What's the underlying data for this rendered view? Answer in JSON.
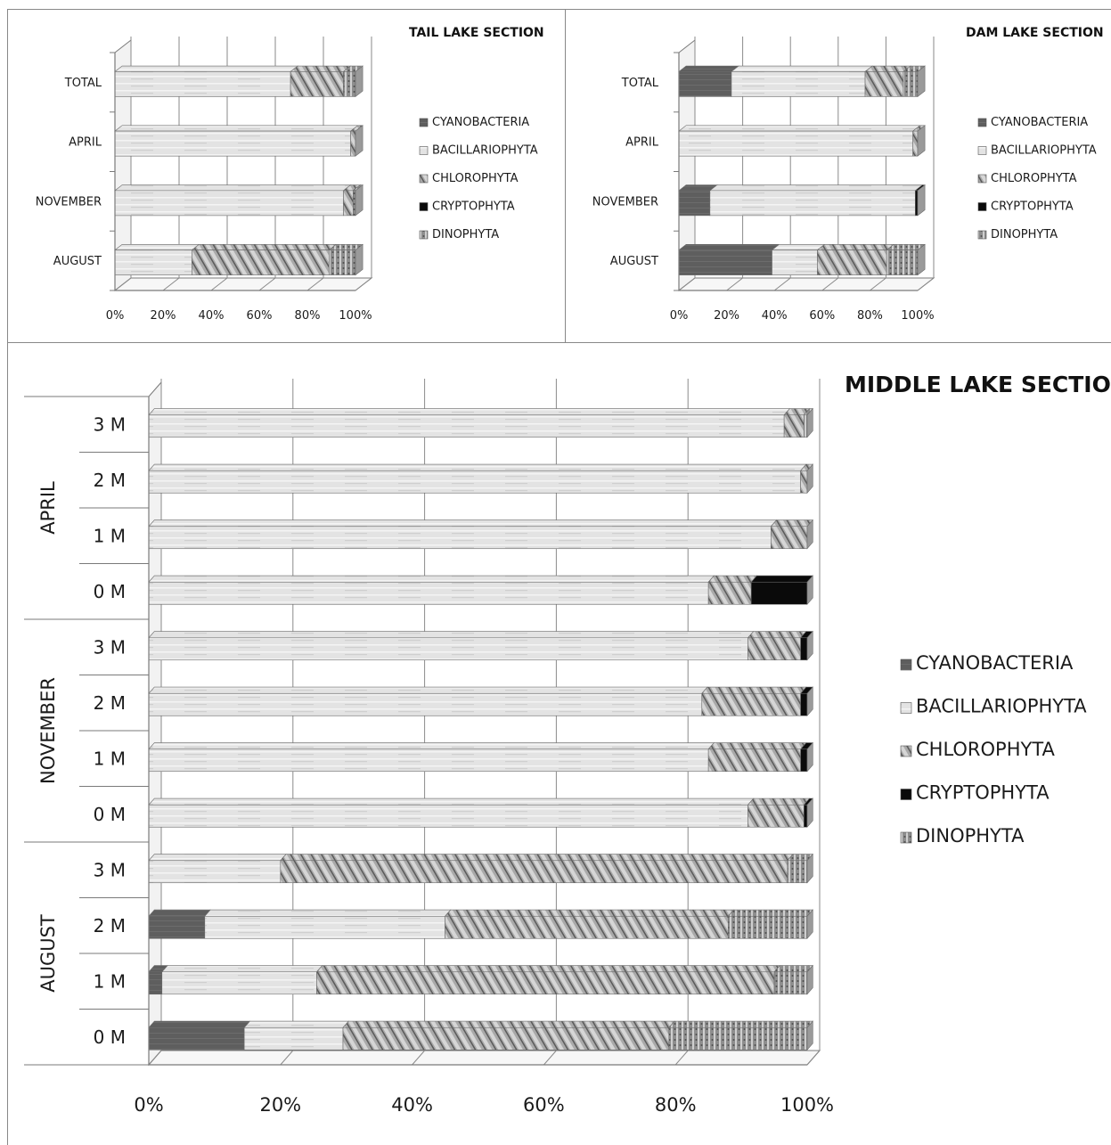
{
  "colors": {
    "CYANOBACTERIA": "#5e5e5e",
    "BACILLARIOPHYTA": "#e3e3e3",
    "CHLOROPHYTA": "#a9a9a9",
    "CRYPTOPHYTA": "#0a0a0a",
    "DINOPHYTA": "#8e8e8e"
  },
  "chart_data": [
    {
      "type": "bar",
      "stacked": "percent",
      "orientation": "horizontal",
      "title": "TAIL LAKE SECTION",
      "categories": [
        "TOTAL",
        "APRIL",
        "NOVEMBER",
        "AUGUST"
      ],
      "series": [
        {
          "name": "CYANOBACTERIA",
          "values": [
            0,
            0,
            0,
            0
          ]
        },
        {
          "name": "BACILLARIOPHYTA",
          "values": [
            73,
            98,
            95,
            32
          ]
        },
        {
          "name": "CHLOROPHYTA",
          "values": [
            22,
            2,
            4,
            57
          ]
        },
        {
          "name": "CRYPTOPHYTA",
          "values": [
            0,
            0,
            0,
            0
          ]
        },
        {
          "name": "DINOPHYTA",
          "values": [
            5,
            0,
            1,
            11
          ]
        }
      ],
      "x_ticks": [
        "0%",
        "20%",
        "40%",
        "60%",
        "80%",
        "100%"
      ],
      "xlim": [
        0,
        100
      ],
      "legend": "right",
      "grid": true
    },
    {
      "type": "bar",
      "stacked": "percent",
      "orientation": "horizontal",
      "title": "DAM LAKE SECTION",
      "categories": [
        "TOTAL",
        "APRIL",
        "NOVEMBER",
        "AUGUST"
      ],
      "series": [
        {
          "name": "CYANOBACTERIA",
          "values": [
            22,
            0,
            13,
            39
          ]
        },
        {
          "name": "BACILLARIOPHYTA",
          "values": [
            56,
            98,
            86,
            19
          ]
        },
        {
          "name": "CHLOROPHYTA",
          "values": [
            16,
            2,
            0,
            29
          ]
        },
        {
          "name": "CRYPTOPHYTA",
          "values": [
            0,
            0,
            1,
            0
          ]
        },
        {
          "name": "DINOPHYTA",
          "values": [
            6,
            0,
            0,
            13
          ]
        }
      ],
      "x_ticks": [
        "0%",
        "20%",
        "40%",
        "60%",
        "80%",
        "100%"
      ],
      "xlim": [
        0,
        100
      ],
      "legend": "right",
      "grid": true
    },
    {
      "type": "bar",
      "stacked": "percent",
      "orientation": "horizontal",
      "title": "MIDDLE LAKE SECTION",
      "groups": [
        {
          "label": "APRIL",
          "categories": [
            "3 M",
            "2 M",
            "1 M",
            "0 M"
          ]
        },
        {
          "label": "NOVEMBER",
          "categories": [
            "3 M",
            "2 M",
            "1 M",
            "0 M"
          ]
        },
        {
          "label": "AUGUST",
          "categories": [
            "3 M",
            "2 M",
            "1 M",
            "0 M"
          ]
        }
      ],
      "series": [
        {
          "name": "CYANOBACTERIA",
          "values": [
            0,
            0,
            0,
            0,
            0,
            0,
            0,
            0,
            0,
            8.5,
            2,
            14.5
          ]
        },
        {
          "name": "BACILLARIOPHYTA",
          "values": [
            96.5,
            99,
            94.5,
            85,
            91,
            84,
            85,
            91,
            20,
            36.5,
            23.5,
            15
          ]
        },
        {
          "name": "CHLOROPHYTA",
          "values": [
            3,
            1,
            5.5,
            6.5,
            8,
            15,
            14,
            8.5,
            77,
            43,
            69.5,
            49.5
          ]
        },
        {
          "name": "CRYPTOPHYTA",
          "values": [
            0,
            0,
            0,
            8.5,
            1,
            1,
            1,
            0.5,
            0,
            0,
            0,
            0
          ]
        },
        {
          "name": "DINOPHYTA",
          "values": [
            0.5,
            0,
            0,
            0,
            0,
            0,
            0,
            0,
            3,
            12,
            5,
            21
          ]
        }
      ],
      "x_ticks": [
        "0%",
        "20%",
        "40%",
        "60%",
        "80%",
        "100%"
      ],
      "xlim": [
        0,
        100
      ],
      "legend": "right",
      "grid": true
    }
  ]
}
